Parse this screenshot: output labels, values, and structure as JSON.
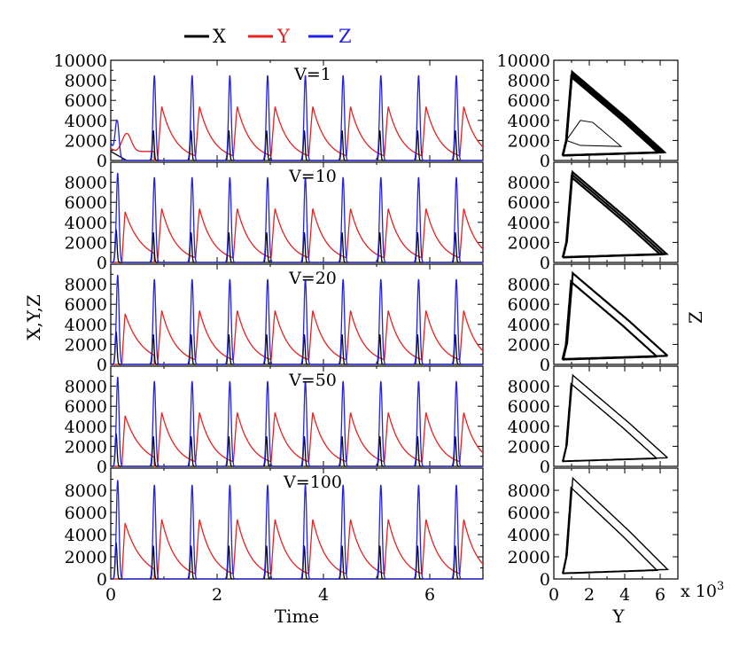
{
  "colors": {
    "X": "#000000",
    "Y": "#e52222",
    "Z": "#2222e5"
  },
  "chart_data": [
    {
      "type": "line",
      "panel": "time-series",
      "xlabel": "Time",
      "ylabel": "X,Y,Z",
      "xlim": [
        0,
        7
      ],
      "ylim": [
        0,
        10000
      ],
      "x_ticks": [
        "0",
        "2",
        "4",
        "6"
      ],
      "y_ticks_top": [
        "0",
        "2000",
        "4000",
        "6000",
        "8000",
        "10000"
      ],
      "y_ticks": [
        "0",
        "2000",
        "4000",
        "6000",
        "8000"
      ],
      "legend": [
        "X",
        "Y",
        "Z"
      ],
      "legend_position": "top",
      "series": [
        {
          "name": "X",
          "color": "#000000",
          "peak": 3000
        },
        {
          "name": "Y",
          "color": "#e52222",
          "peak": 5800
        },
        {
          "name": "Z",
          "color": "#2222e5",
          "peak": 8500
        }
      ],
      "period": 0.71,
      "first_spike_time": 0.82,
      "rows": [
        {
          "label": "V=1"
        },
        {
          "label": "V=10"
        },
        {
          "label": "V=20"
        },
        {
          "label": "V=50"
        },
        {
          "label": "V=100"
        }
      ]
    },
    {
      "type": "line",
      "panel": "phase-portrait",
      "xlabel": "Y",
      "ylabel": "Z",
      "xlim": [
        0,
        7000
      ],
      "ylim": [
        0,
        10000
      ],
      "x_ticks": [
        "0",
        "2",
        "4",
        "6"
      ],
      "x_scale_label": "x 10",
      "x_scale_exp": "3",
      "y_ticks_top": [
        "0",
        "2000",
        "4000",
        "6000",
        "8000",
        "10000"
      ],
      "y_ticks": [
        "0",
        "2000",
        "4000",
        "6000",
        "8000"
      ],
      "loop": [
        [
          500,
          500
        ],
        [
          6000,
          800
        ],
        [
          4000,
          4000
        ],
        [
          1000,
          8500
        ],
        [
          700,
          2000
        ]
      ]
    }
  ]
}
